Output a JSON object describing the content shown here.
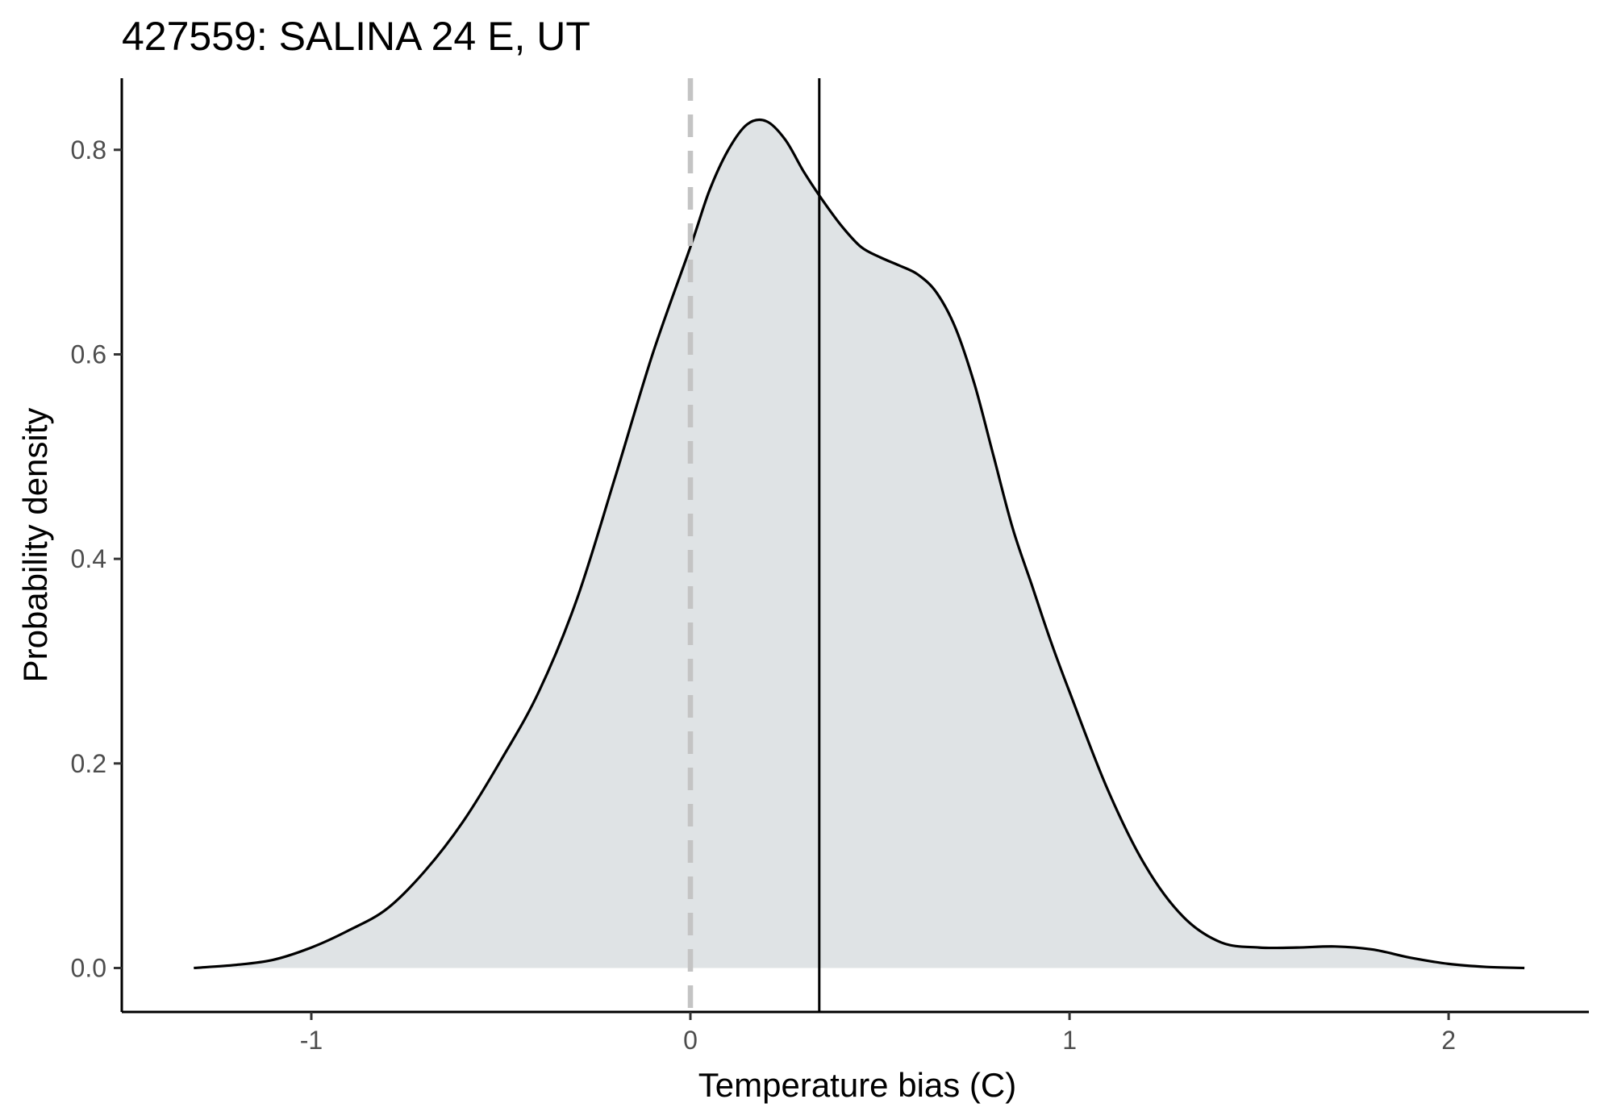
{
  "chart_data": {
    "type": "area",
    "title": "427559: SALINA 24 E, UT",
    "xlabel": "Temperature bias (C)",
    "ylabel": "Probability density",
    "xlim": [
      -1.5,
      2.37
    ],
    "ylim": [
      -0.043,
      0.87
    ],
    "x_ticks": [
      -1,
      0,
      1,
      2
    ],
    "x_tick_labels": [
      "-1",
      "0",
      "1",
      "2"
    ],
    "y_ticks": [
      0.0,
      0.2,
      0.4,
      0.6,
      0.8
    ],
    "y_tick_labels": [
      "0.0",
      "0.2",
      "0.4",
      "0.6",
      "0.8"
    ],
    "grid": false,
    "series": [
      {
        "x": [
          -1.31,
          -1.2,
          -1.1,
          -1.0,
          -0.9,
          -0.8,
          -0.7,
          -0.6,
          -0.5,
          -0.4,
          -0.3,
          -0.2,
          -0.1,
          0.0,
          0.05,
          0.1,
          0.15,
          0.2,
          0.25,
          0.3,
          0.35,
          0.4,
          0.45,
          0.5,
          0.55,
          0.6,
          0.65,
          0.7,
          0.75,
          0.8,
          0.85,
          0.9,
          0.95,
          1.0,
          1.1,
          1.2,
          1.3,
          1.4,
          1.5,
          1.6,
          1.7,
          1.8,
          1.9,
          2.0,
          2.1,
          2.2
        ],
        "y": [
          0.0,
          0.003,
          0.008,
          0.02,
          0.037,
          0.058,
          0.095,
          0.143,
          0.203,
          0.27,
          0.36,
          0.478,
          0.6,
          0.705,
          0.76,
          0.8,
          0.825,
          0.828,
          0.81,
          0.778,
          0.75,
          0.725,
          0.705,
          0.695,
          0.687,
          0.678,
          0.66,
          0.625,
          0.57,
          0.5,
          0.43,
          0.375,
          0.32,
          0.27,
          0.175,
          0.1,
          0.05,
          0.025,
          0.02,
          0.02,
          0.021,
          0.018,
          0.01,
          0.004,
          0.001,
          0.0
        ],
        "fill_color": "#dfe3e5",
        "line_color": "#000000"
      }
    ],
    "reference_lines": [
      {
        "orientation": "vertical",
        "x": 0,
        "style": "dashed",
        "color": "#c4c4c4"
      },
      {
        "orientation": "vertical",
        "x": 0.34,
        "style": "solid",
        "color": "#000000"
      }
    ]
  }
}
